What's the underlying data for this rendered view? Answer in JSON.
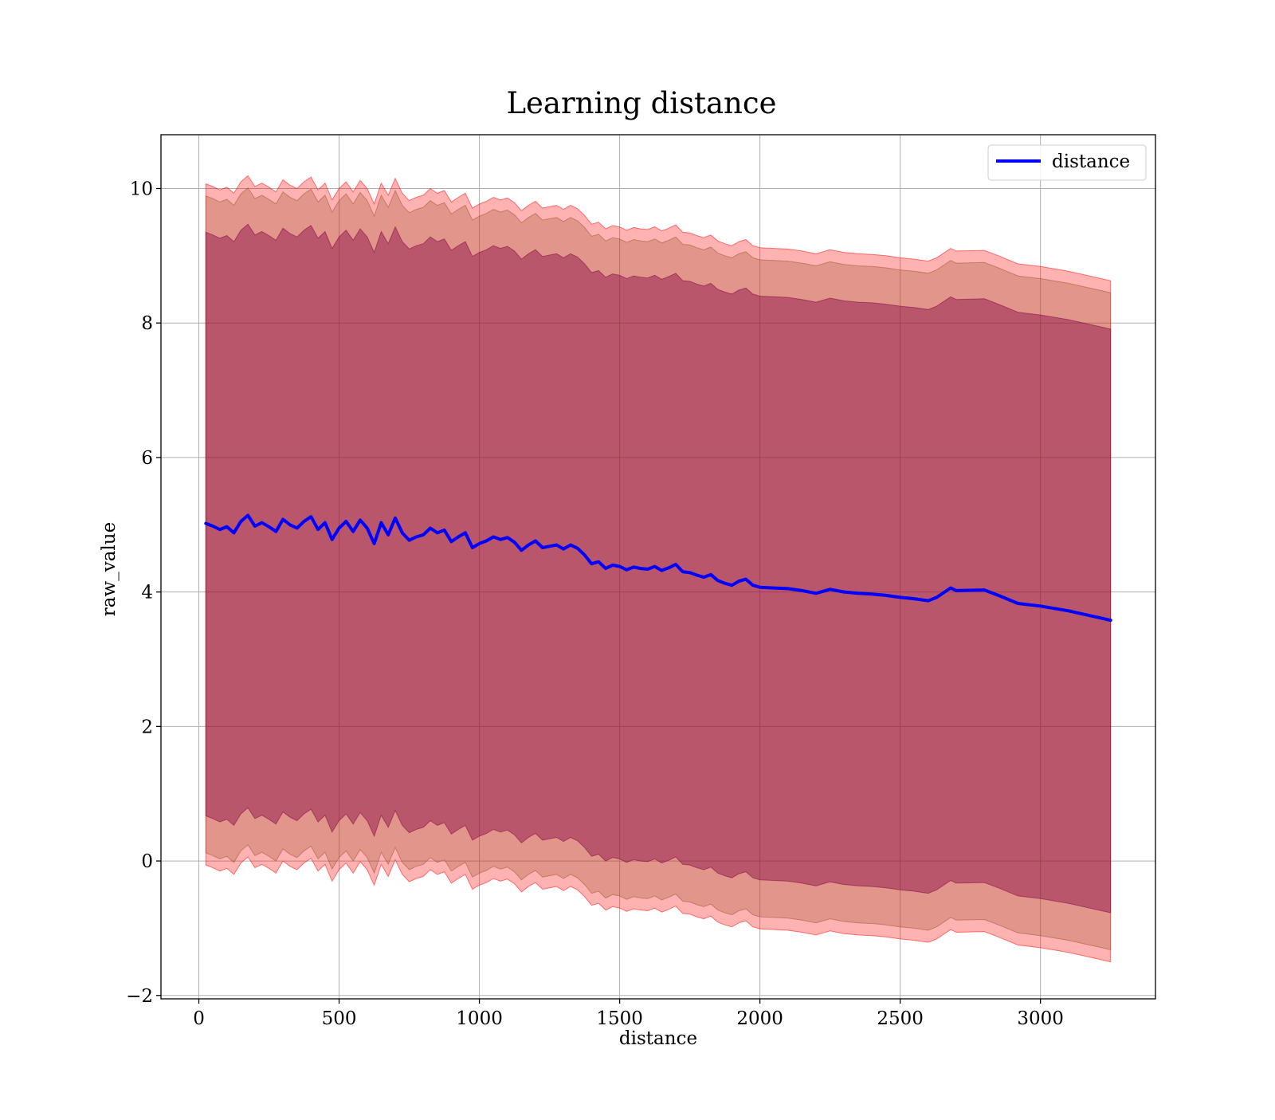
{
  "chart_data": {
    "type": "line",
    "title": "Learning distance",
    "xlabel": "distance",
    "ylabel": "raw_value",
    "xlim": [
      -135,
      3410
    ],
    "ylim": [
      -2.05,
      10.8
    ],
    "x_ticks": [
      0,
      500,
      1000,
      1500,
      2000,
      2500,
      3000
    ],
    "y_ticks": [
      -2,
      0,
      2,
      4,
      6,
      8,
      10
    ],
    "grid": true,
    "legend": {
      "position": "top-right",
      "entries": [
        "distance"
      ]
    },
    "colors": {
      "line": "#0000ff",
      "band_outer": "#ff0000",
      "band_middle": "#a0522d",
      "band_inner": "#800040",
      "grid": "#b0b0b0"
    },
    "series": [
      {
        "name": "distance",
        "x": [
          25,
          50,
          75,
          100,
          125,
          150,
          175,
          200,
          225,
          250,
          275,
          300,
          325,
          350,
          375,
          400,
          425,
          450,
          475,
          500,
          525,
          550,
          575,
          600,
          625,
          650,
          675,
          700,
          725,
          750,
          775,
          800,
          825,
          850,
          875,
          900,
          925,
          950,
          975,
          1000,
          1025,
          1050,
          1075,
          1100,
          1125,
          1150,
          1175,
          1200,
          1225,
          1250,
          1275,
          1300,
          1325,
          1350,
          1375,
          1400,
          1425,
          1450,
          1475,
          1500,
          1525,
          1550,
          1575,
          1600,
          1625,
          1650,
          1675,
          1700,
          1725,
          1750,
          1775,
          1800,
          1825,
          1850,
          1875,
          1900,
          1925,
          1950,
          1975,
          2000,
          2050,
          2100,
          2150,
          2200,
          2250,
          2300,
          2350,
          2400,
          2450,
          2500,
          2550,
          2600,
          2630,
          2680,
          2700,
          2800,
          2850,
          2920,
          3000,
          3100,
          3250
        ],
        "values": [
          5.02,
          4.98,
          4.93,
          4.97,
          4.88,
          5.05,
          5.14,
          4.98,
          5.03,
          4.97,
          4.9,
          5.08,
          5.0,
          4.95,
          5.05,
          5.12,
          4.93,
          5.03,
          4.78,
          4.95,
          5.05,
          4.9,
          5.07,
          4.95,
          4.72,
          5.03,
          4.85,
          5.1,
          4.88,
          4.77,
          4.82,
          4.85,
          4.95,
          4.88,
          4.92,
          4.75,
          4.82,
          4.88,
          4.66,
          4.72,
          4.76,
          4.82,
          4.78,
          4.81,
          4.74,
          4.62,
          4.7,
          4.76,
          4.66,
          4.68,
          4.7,
          4.64,
          4.7,
          4.65,
          4.55,
          4.42,
          4.45,
          4.35,
          4.4,
          4.38,
          4.33,
          4.37,
          4.35,
          4.34,
          4.38,
          4.32,
          4.36,
          4.41,
          4.3,
          4.29,
          4.25,
          4.22,
          4.26,
          4.17,
          4.13,
          4.1,
          4.16,
          4.19,
          4.1,
          4.07,
          4.06,
          4.05,
          4.02,
          3.98,
          4.04,
          4.0,
          3.98,
          3.97,
          3.95,
          3.92,
          3.9,
          3.87,
          3.92,
          4.06,
          4.02,
          4.03,
          3.95,
          3.83,
          3.79,
          3.72,
          3.58
        ]
      }
    ],
    "bands": [
      {
        "role": "outer",
        "lower_offset": -5.08,
        "upper_offset": 5.05
      },
      {
        "role": "middle",
        "lower_offset": -4.9,
        "upper_offset": 4.87
      },
      {
        "role": "inner",
        "lower_offset": -4.35,
        "upper_offset": 4.33
      }
    ]
  }
}
